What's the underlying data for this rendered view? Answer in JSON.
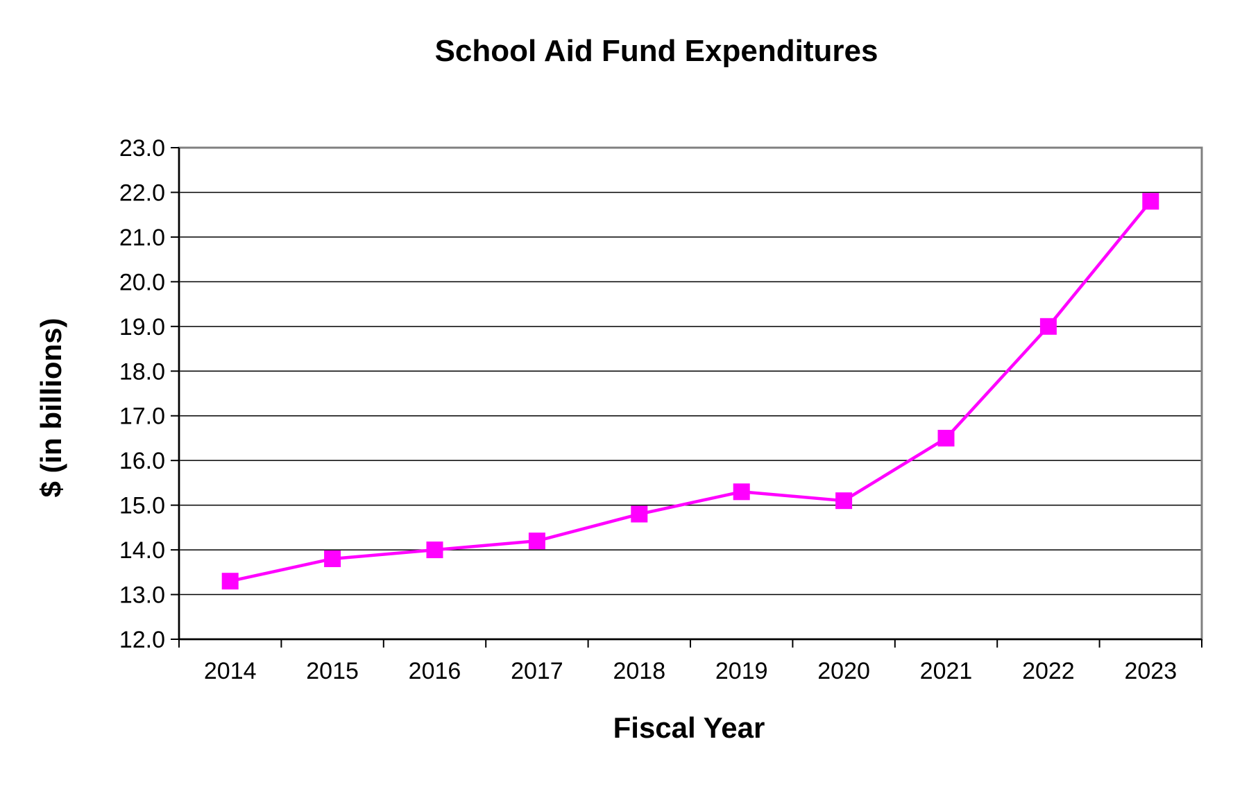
{
  "chart_data": {
    "type": "line",
    "title": "School Aid Fund Expenditures",
    "xlabel": "Fiscal Year",
    "ylabel": "$ (in billions)",
    "categories": [
      "2014",
      "2015",
      "2016",
      "2017",
      "2018",
      "2019",
      "2020",
      "2021",
      "2022",
      "2023"
    ],
    "series": [
      {
        "values": [
          13.3,
          13.8,
          14.0,
          14.2,
          14.8,
          15.3,
          15.1,
          16.5,
          19.0,
          21.8
        ],
        "color": "#ff00ff",
        "marker": "square"
      }
    ],
    "ylim": [
      12.0,
      23.0
    ],
    "ystep": 1.0,
    "ytick_labels": [
      "12.0",
      "13.0",
      "14.0",
      "15.0",
      "16.0",
      "17.0",
      "18.0",
      "19.0",
      "20.0",
      "21.0",
      "22.0",
      "23.0"
    ],
    "grid": true,
    "legend": "none",
    "colors": {
      "gridline": "#000000",
      "plot_border": "#808080",
      "axis": "#000000"
    }
  }
}
